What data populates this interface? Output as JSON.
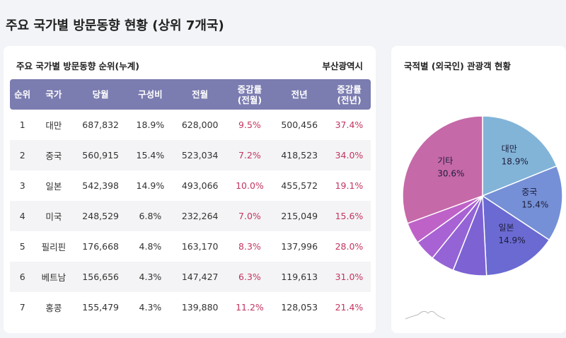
{
  "page_title": "주요 국가별 방문동향 현황 (상위 7개국)",
  "table_card": {
    "title": "주요 국가별 방문동향 순위(누계)",
    "region": "부산광역시",
    "headers": [
      "순위",
      "국가",
      "당월",
      "구성비",
      "전월",
      "증감률\n(전월)",
      "전년",
      "증감률\n(전년)"
    ],
    "rows": [
      [
        "1",
        "대만",
        "687,832",
        "18.9%",
        "628,000",
        "9.5%",
        "500,456",
        "37.4%"
      ],
      [
        "2",
        "중국",
        "560,915",
        "15.4%",
        "523,034",
        "7.2%",
        "418,523",
        "34.0%"
      ],
      [
        "3",
        "일본",
        "542,398",
        "14.9%",
        "493,066",
        "10.0%",
        "455,572",
        "19.1%"
      ],
      [
        "4",
        "미국",
        "248,529",
        "6.8%",
        "232,264",
        "7.0%",
        "215,049",
        "15.6%"
      ],
      [
        "5",
        "필리핀",
        "176,668",
        "4.8%",
        "163,170",
        "8.3%",
        "137,996",
        "28.0%"
      ],
      [
        "6",
        "베트남",
        "156,656",
        "4.3%",
        "147,427",
        "6.3%",
        "119,613",
        "31.0%"
      ],
      [
        "7",
        "홍콩",
        "155,479",
        "4.3%",
        "139,880",
        "11.2%",
        "128,053",
        "21.4%"
      ]
    ]
  },
  "pie_card": {
    "title": "국적별 (외국인) 관광객 현황"
  },
  "chart_data": {
    "type": "pie",
    "title": "국적별 (외국인) 관광객 현황",
    "slices": [
      {
        "label": "대만",
        "value": 18.9,
        "text": "18.9%",
        "color": "#82b4d8",
        "show": true
      },
      {
        "label": "중국",
        "value": 15.4,
        "text": "15.4%",
        "color": "#7590d6",
        "show": true
      },
      {
        "label": "일본",
        "value": 14.9,
        "text": "14.9%",
        "color": "#6a6ad2",
        "show": true
      },
      {
        "label": "미국",
        "value": 6.8,
        "color": "#7d62d4",
        "show": false
      },
      {
        "label": "필리핀",
        "value": 4.8,
        "color": "#9464d6",
        "show": false
      },
      {
        "label": "베트남",
        "value": 4.3,
        "color": "#a862d4",
        "show": false
      },
      {
        "label": "홍콩",
        "value": 4.3,
        "color": "#bf62c8",
        "show": false
      },
      {
        "label": "기타",
        "value": 30.6,
        "text": "30.6%",
        "color": "#c669a8",
        "show": true
      }
    ]
  }
}
